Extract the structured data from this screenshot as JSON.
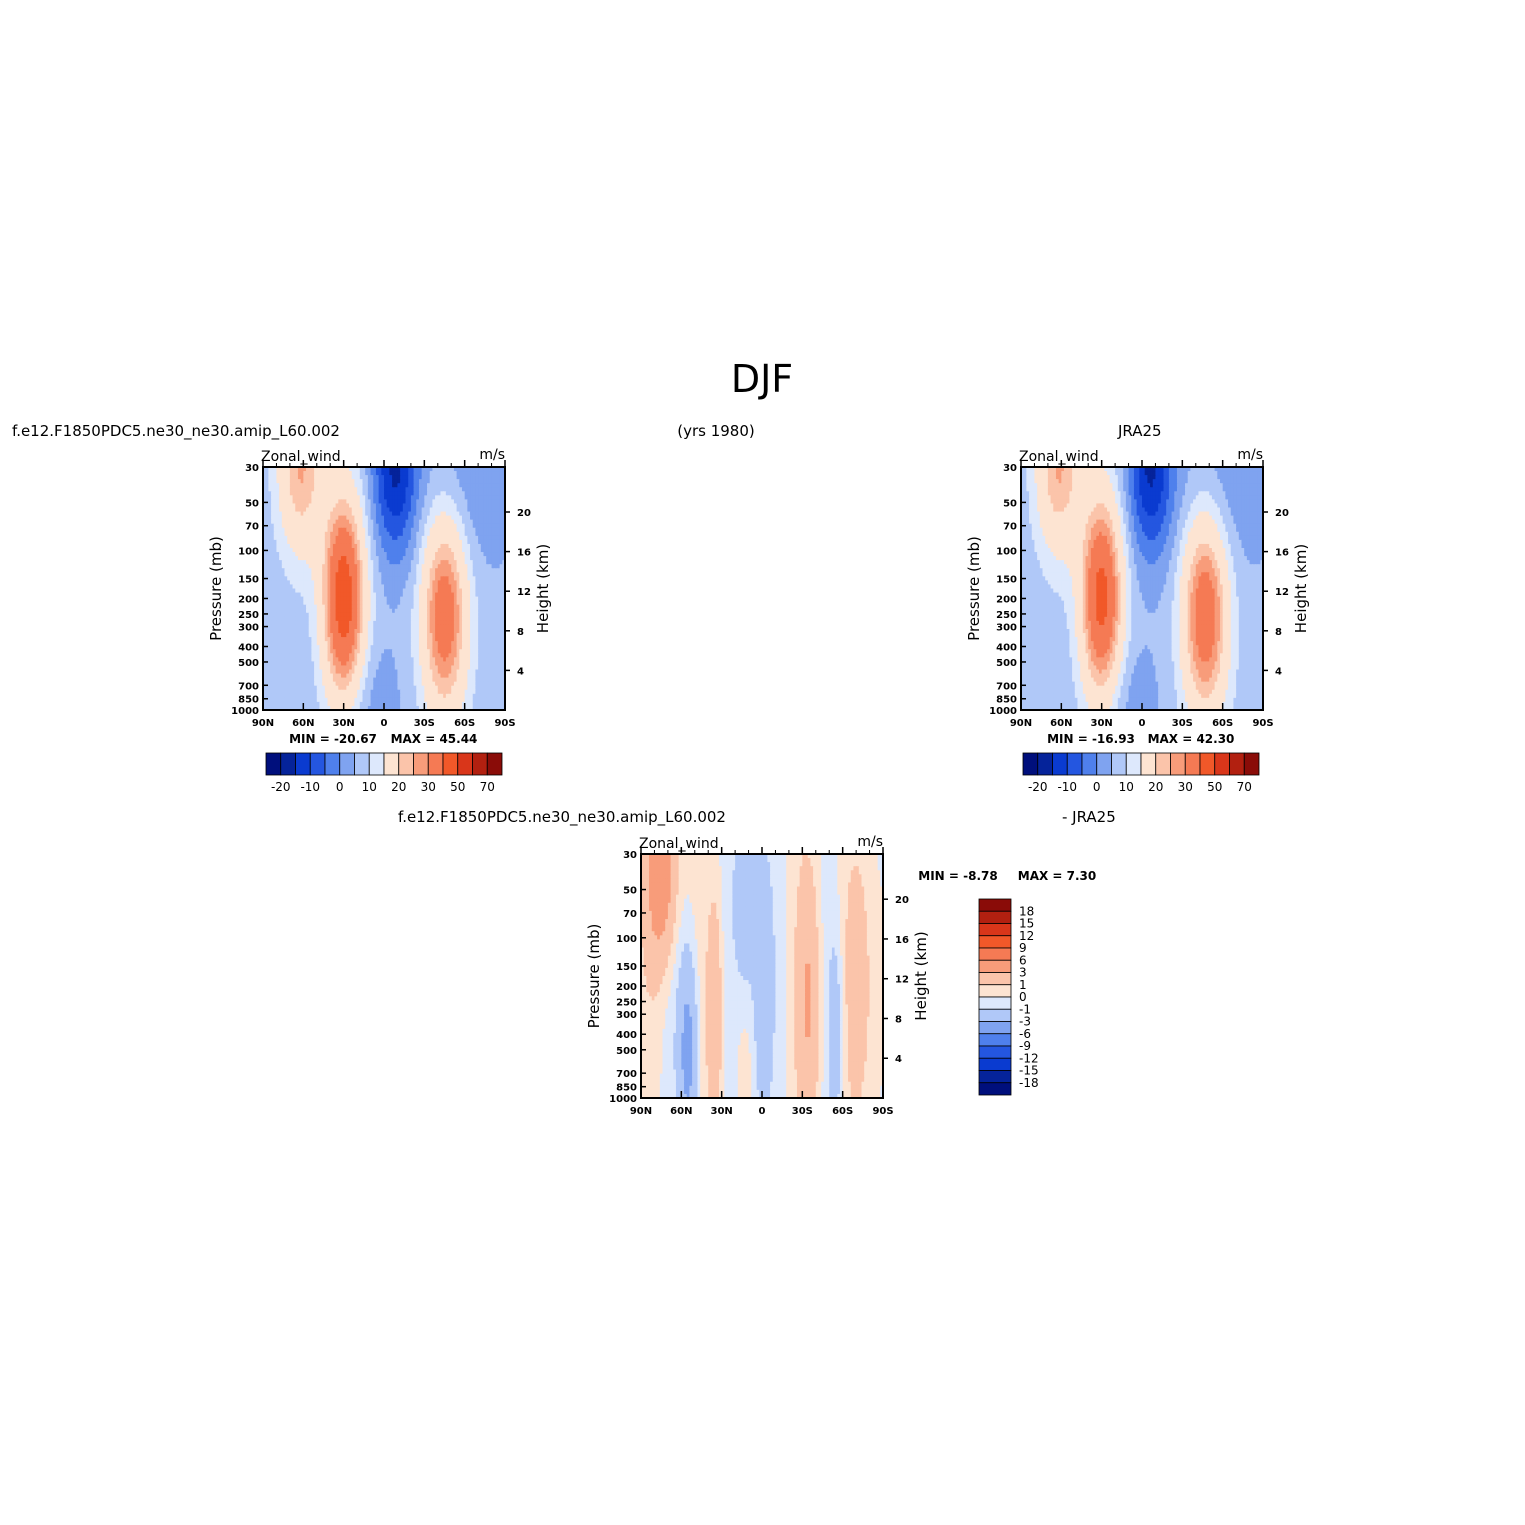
{
  "figure": {
    "title": "DJF",
    "period": "(yrs 1980)"
  },
  "chart_data": [
    {
      "type": "heatmap",
      "panel": "model",
      "title_left": "f.e12.F1850PDC5.ne30_ne30.amip_L60.002",
      "variable": "Zonal_wind",
      "units": "m/s",
      "ylabel": "Pressure (mb)",
      "ylabel_right": "Height (km)",
      "x_ticks": [
        "90N",
        "60N",
        "30N",
        "0",
        "30S",
        "60S",
        "90S"
      ],
      "y_ticks": [
        "30",
        "50",
        "70",
        "100",
        "150",
        "200",
        "250",
        "300",
        "400",
        "500",
        "700",
        "850",
        "1000"
      ],
      "y_right_ticks": [
        "20",
        "16",
        "12",
        "8",
        "4"
      ],
      "min_label": "MIN = -20.67",
      "max_label": "MAX = 45.44",
      "stats": {
        "min": -20.67,
        "max": 45.44
      },
      "colorbar_labels": [
        "-20",
        "-10",
        "0",
        "10",
        "20",
        "30",
        "50",
        "70"
      ],
      "jets": [
        {
          "lat": 30,
          "core_mb": 200,
          "peak": 45
        },
        {
          "lat": -45,
          "core_mb": 250,
          "peak": 35
        }
      ]
    },
    {
      "type": "heatmap",
      "panel": "obs",
      "title_left": "JRA25",
      "variable": "Zonal_wind",
      "units": "m/s",
      "ylabel": "Pressure (mb)",
      "ylabel_right": "Height (km)",
      "x_ticks": [
        "90N",
        "60N",
        "30N",
        "0",
        "30S",
        "60S",
        "90S"
      ],
      "y_ticks": [
        "30",
        "50",
        "70",
        "100",
        "150",
        "200",
        "250",
        "300",
        "400",
        "500",
        "700",
        "850",
        "1000"
      ],
      "y_right_ticks": [
        "20",
        "16",
        "12",
        "8",
        "4"
      ],
      "min_label": "MIN = -16.93",
      "max_label": "MAX = 42.30",
      "stats": {
        "min": -16.93,
        "max": 42.3
      },
      "colorbar_labels": [
        "-20",
        "-10",
        "0",
        "10",
        "20",
        "30",
        "50",
        "70"
      ],
      "jets": [
        {
          "lat": 30,
          "core_mb": 200,
          "peak": 42
        },
        {
          "lat": -47,
          "core_mb": 250,
          "peak": 36
        }
      ]
    },
    {
      "type": "heatmap",
      "panel": "diff",
      "title_left": "f.e12.F1850PDC5.ne30_ne30.amip_L60.002",
      "title_right": "- JRA25",
      "variable": "Zonal_wind",
      "units": "m/s",
      "ylabel": "Pressure (mb)",
      "ylabel_right": "Height (km)",
      "x_ticks": [
        "90N",
        "60N",
        "30N",
        "0",
        "30S",
        "60S",
        "90S"
      ],
      "y_ticks": [
        "30",
        "50",
        "70",
        "100",
        "150",
        "200",
        "250",
        "300",
        "400",
        "500",
        "700",
        "850",
        "1000"
      ],
      "y_right_ticks": [
        "20",
        "16",
        "12",
        "8",
        "4"
      ],
      "min_label": "MIN = -8.78",
      "max_label": "MAX = 7.30",
      "stats": {
        "min": -8.78,
        "max": 7.3
      },
      "colorbar_labels": [
        "18",
        "15",
        "12",
        "9",
        "6",
        "3",
        "1",
        "0",
        "-1",
        "-3",
        "-6",
        "-9",
        "-12",
        "-15",
        "-18"
      ]
    }
  ],
  "colors": {
    "colormap": [
      "#000f7c",
      "#05239a",
      "#0a3bd0",
      "#2456e0",
      "#4f80ec",
      "#7fa3f0",
      "#b0c8f8",
      "#dde8fc",
      "#fde4d2",
      "#fbc4aa",
      "#f89c7a",
      "#f57a54",
      "#f15829",
      "#d9361a",
      "#b22010",
      "#8a0c08"
    ],
    "diff_colormap": [
      "#8a0c08",
      "#b22010",
      "#d9361a",
      "#f15829",
      "#f57a54",
      "#f89c7a",
      "#fbc4aa",
      "#fde4d2",
      "#dde8fc",
      "#b0c8f8",
      "#7fa3f0",
      "#4f80ec",
      "#2456e0",
      "#0a3bd0",
      "#05239a",
      "#000f7c"
    ]
  }
}
